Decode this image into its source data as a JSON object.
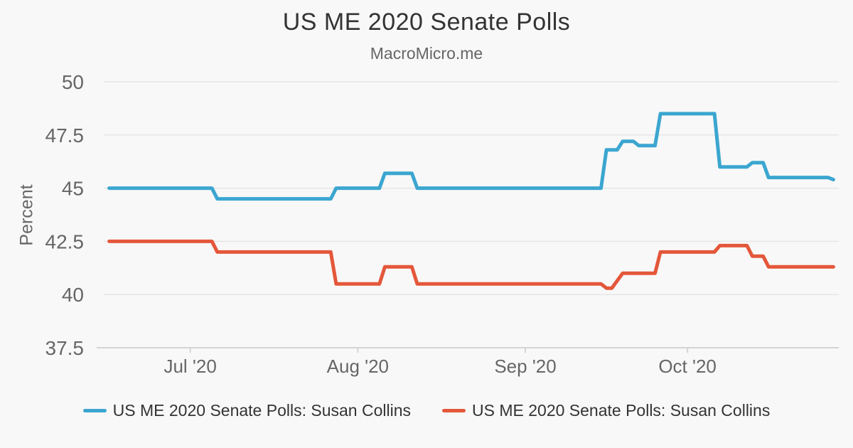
{
  "page": {
    "background_color": "#f8f8f8"
  },
  "header": {
    "title": "US ME 2020 Senate Polls",
    "subtitle": "MacroMicro.me"
  },
  "chart_data": {
    "type": "line",
    "title": "US ME 2020 Senate Polls",
    "subtitle": "MacroMicro.me",
    "xlabel": "",
    "ylabel": "Percent",
    "ylim": [
      37.5,
      50
    ],
    "yticks": [
      50,
      47.5,
      45,
      42.5,
      40,
      37.5
    ],
    "x_domain": [
      "2020-06-15",
      "2020-10-29"
    ],
    "xticks": [
      {
        "label": "Jul '20",
        "date": "2020-07-01"
      },
      {
        "label": "Aug '20",
        "date": "2020-08-01"
      },
      {
        "label": "Sep '20",
        "date": "2020-09-01"
      },
      {
        "label": "Oct '20",
        "date": "2020-10-01"
      }
    ],
    "grid": true,
    "legend_position": "bottom",
    "colors": {
      "grid_line": "#e6e6e6",
      "axis_line": "#d4d4d4",
      "tick_label": "#666666",
      "title_text": "#333333"
    },
    "series": [
      {
        "name": "US ME 2020 Senate Polls: Susan Collins",
        "color": "#3BA6D0",
        "points": [
          [
            "2020-06-16",
            45.0
          ],
          [
            "2020-07-05",
            45.0
          ],
          [
            "2020-07-06",
            44.5
          ],
          [
            "2020-07-27",
            44.5
          ],
          [
            "2020-07-28",
            45.0
          ],
          [
            "2020-08-05",
            45.0
          ],
          [
            "2020-08-06",
            45.7
          ],
          [
            "2020-08-11",
            45.7
          ],
          [
            "2020-08-12",
            45.0
          ],
          [
            "2020-09-15",
            45.0
          ],
          [
            "2020-09-16",
            46.8
          ],
          [
            "2020-09-18",
            46.8
          ],
          [
            "2020-09-19",
            47.2
          ],
          [
            "2020-09-21",
            47.2
          ],
          [
            "2020-09-22",
            47.0
          ],
          [
            "2020-09-25",
            47.0
          ],
          [
            "2020-09-26",
            48.5
          ],
          [
            "2020-10-06",
            48.5
          ],
          [
            "2020-10-07",
            46.0
          ],
          [
            "2020-10-12",
            46.0
          ],
          [
            "2020-10-13",
            46.2
          ],
          [
            "2020-10-15",
            46.2
          ],
          [
            "2020-10-16",
            45.5
          ],
          [
            "2020-10-27",
            45.5
          ],
          [
            "2020-10-28",
            45.4
          ]
        ]
      },
      {
        "name": "US ME 2020 Senate Polls: Susan Collins",
        "color": "#E4573A",
        "points": [
          [
            "2020-06-16",
            42.5
          ],
          [
            "2020-07-05",
            42.5
          ],
          [
            "2020-07-06",
            42.0
          ],
          [
            "2020-07-27",
            42.0
          ],
          [
            "2020-07-28",
            40.5
          ],
          [
            "2020-08-05",
            40.5
          ],
          [
            "2020-08-06",
            41.3
          ],
          [
            "2020-08-11",
            41.3
          ],
          [
            "2020-08-12",
            40.5
          ],
          [
            "2020-09-15",
            40.5
          ],
          [
            "2020-09-16",
            40.3
          ],
          [
            "2020-09-17",
            40.3
          ],
          [
            "2020-09-19",
            41.0
          ],
          [
            "2020-09-25",
            41.0
          ],
          [
            "2020-09-26",
            42.0
          ],
          [
            "2020-10-06",
            42.0
          ],
          [
            "2020-10-07",
            42.3
          ],
          [
            "2020-10-12",
            42.3
          ],
          [
            "2020-10-13",
            41.8
          ],
          [
            "2020-10-15",
            41.8
          ],
          [
            "2020-10-16",
            41.3
          ],
          [
            "2020-10-28",
            41.3
          ]
        ]
      }
    ]
  }
}
